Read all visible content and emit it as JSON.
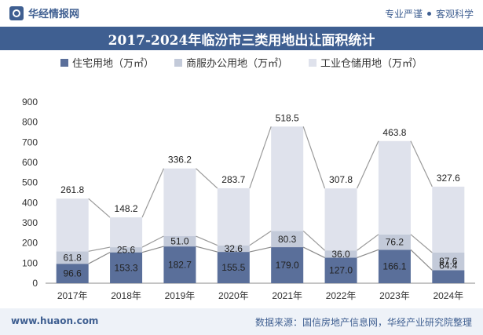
{
  "header": {
    "brand": "华经情报网",
    "slogan_left": "专业严谨",
    "slogan_right": "客观科学"
  },
  "chart_data": {
    "type": "bar",
    "stacked": true,
    "title": "2017-2024年临汾市三类用地出让面积统计",
    "categories": [
      "2017年",
      "2018年",
      "2019年",
      "2020年",
      "2021年",
      "2022年",
      "2023年",
      "2024年"
    ],
    "series": [
      {
        "name": "住宅用地（万㎡）",
        "color": "#5a6f9a",
        "values": [
          96.6,
          153.3,
          182.7,
          155.5,
          179.0,
          127.0,
          166.1,
          64.4
        ]
      },
      {
        "name": "商服办公用地（万㎡）",
        "color": "#c3cad9",
        "values": [
          61.8,
          25.6,
          51.0,
          32.6,
          80.3,
          36.0,
          76.2,
          87.6
        ]
      },
      {
        "name": "工业仓储用地（万㎡）",
        "color": "#dfe2ec",
        "values": [
          261.8,
          148.2,
          336.2,
          283.7,
          518.5,
          307.8,
          463.8,
          327.6
        ]
      }
    ],
    "value_labels": {
      "s0": [
        "96.6",
        "153.3",
        "182.7",
        "155.5",
        "179.0",
        "127.0",
        "166.1",
        "64.4"
      ],
      "s1": [
        "61.8",
        "25.6",
        "51.0",
        "32.6",
        "80.3",
        "36.0",
        "76.2",
        "87.6"
      ],
      "s2": [
        "261.8",
        "148.2",
        "336.2",
        "283.7",
        "518.5",
        "307.8",
        "463.8",
        "327.6"
      ]
    },
    "yticks": [
      "0",
      "100",
      "200",
      "300",
      "400",
      "500",
      "600",
      "700",
      "800",
      "900"
    ],
    "ylim": [
      0,
      900
    ],
    "xlabel": "",
    "ylabel": "",
    "grid": false,
    "legend": "top"
  },
  "footer": {
    "website": "www.huaon.com",
    "source": "数据来源：国信房地产信息网，华经产业研究院整理"
  }
}
